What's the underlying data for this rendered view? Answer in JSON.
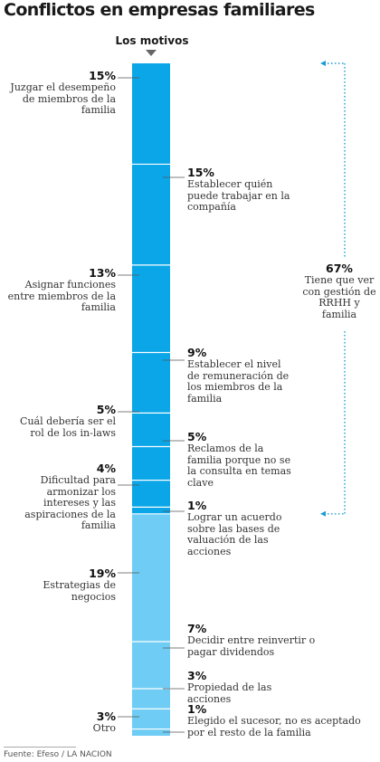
{
  "title": "Conflictos en empresas familiares",
  "column_title": "Los motivos",
  "source": "Fuente: Efeso / LA NACION",
  "colors": {
    "group_dark": "#0aa6e8",
    "group_light": "#6fcdf5",
    "bracket": "#1a9ad6"
  },
  "bracket": {
    "value": "67%",
    "text": "Tiene que ver con gestión de RRHH y familia"
  },
  "chart_data": {
    "type": "bar",
    "orientation": "stacked-vertical",
    "title": "Conflictos en empresas familiares",
    "categories": [
      "Juzgar el desempeño de miembros de la familia",
      "Establecer quién puede trabajar en la compañía",
      "Asignar funciones entre miembros de la familia",
      "Establecer el nivel de remuneración de los miembros de la familia",
      "Cuál debería ser el rol de los in-laws",
      "Reclamos de la familia porque no se la consulta en temas clave",
      "Dificultad para armonizar los intereses y las aspiraciones de la familia",
      "Lograr un acuerdo sobre las bases de valuación de las acciones",
      "Estrategias de negocios",
      "Decidir entre reinvertir o pagar dividendos",
      "Propiedad de las acciones",
      "Otro",
      "Elegido el sucesor, no es aceptado por el resto de la familia"
    ],
    "values": [
      15,
      15,
      13,
      9,
      5,
      5,
      4,
      1,
      19,
      7,
      3,
      3,
      1
    ],
    "value_labels": [
      "15%",
      "15%",
      "13%",
      "9%",
      "5%",
      "5%",
      "4%",
      "1%",
      "19%",
      "7%",
      "3%",
      "3%",
      "1%"
    ],
    "label_side": [
      "left",
      "right",
      "left",
      "right",
      "left",
      "right",
      "left",
      "right",
      "left",
      "right",
      "right",
      "left",
      "right"
    ],
    "group": [
      "dark",
      "dark",
      "dark",
      "dark",
      "dark",
      "dark",
      "dark",
      "dark",
      "light",
      "light",
      "light",
      "light",
      "light"
    ]
  }
}
